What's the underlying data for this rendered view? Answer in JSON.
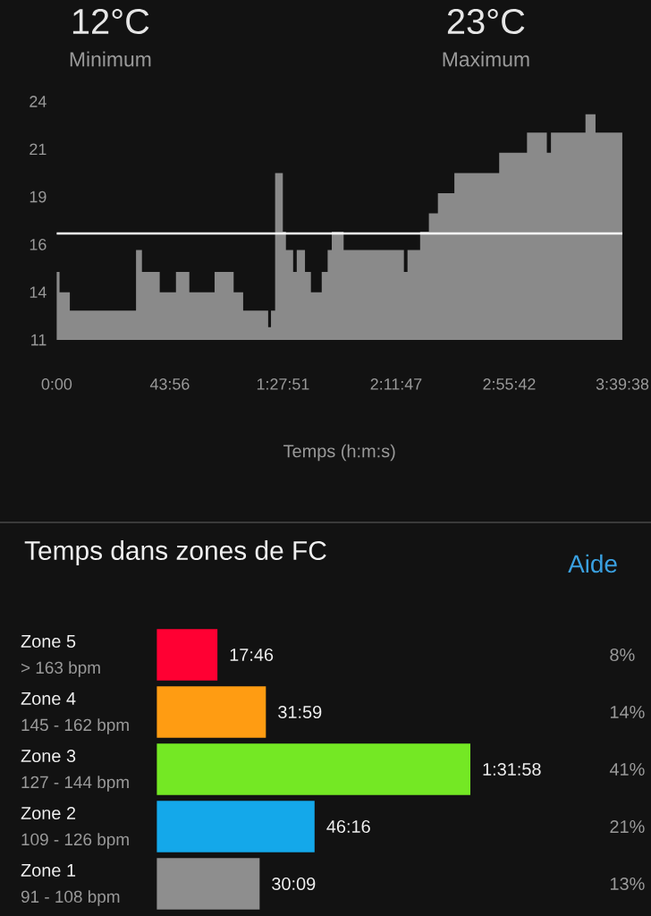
{
  "chart_data": [
    {
      "type": "area",
      "xlabel": "Temps (h:m:s)",
      "color": "#8a8a8a",
      "x": [
        0,
        1.1,
        5.1,
        30.8,
        33.1,
        40.0,
        46.3,
        51.5,
        61.3,
        68.7,
        72.4,
        82.1,
        83.2,
        84.8,
        87.8,
        89.0,
        91.8,
        93.2,
        96.4,
        98.7,
        102.9,
        105.2,
        106.8,
        111.4,
        134.8,
        136.2,
        141.1,
        144.5,
        148.0,
        154.4,
        171.8,
        182.6,
        190.3,
        191.9,
        205.3,
        209.2,
        219.6
      ],
      "values": [
        14.7,
        13.6,
        12.6,
        15.9,
        14.7,
        13.6,
        14.7,
        13.6,
        14.7,
        13.6,
        12.6,
        11.7,
        12.6,
        20.1,
        16.9,
        15.9,
        14.7,
        15.9,
        14.7,
        13.6,
        14.7,
        15.9,
        16.9,
        15.9,
        14.7,
        15.9,
        16.9,
        17.9,
        19.0,
        20.1,
        21.2,
        22.3,
        21.2,
        22.3,
        23.3,
        22.3,
        22.3
      ],
      "xlim": [
        0,
        219.633
      ],
      "ylim": [
        11,
        24
      ],
      "xticks": [
        {
          "value": 0,
          "label": "0:00"
        },
        {
          "value": 43.933,
          "label": "43:56"
        },
        {
          "value": 87.85,
          "label": "1:27:51"
        },
        {
          "value": 131.783,
          "label": "2:11:47"
        },
        {
          "value": 175.7,
          "label": "2:55:42"
        },
        {
          "value": 219.633,
          "label": "3:39:38"
        }
      ],
      "yticks": [
        11,
        {
          "value": 13.6,
          "label": "14"
        },
        {
          "value": 16.2,
          "label": "16"
        },
        {
          "value": 18.8,
          "label": "19"
        },
        {
          "value": 21.4,
          "label": "21"
        },
        24
      ],
      "ref_lines": [
        {
          "axis": "y",
          "value": 16.8,
          "color": "#ffffff"
        }
      ],
      "annotations": [
        "12°C",
        "Minimum",
        "23°C",
        "Maximum"
      ]
    },
    {
      "type": "bar",
      "orientation": "horizontal",
      "title": "Temps dans zones de FC",
      "tick_labels": "y",
      "categories": [
        "Zone 5",
        "Zone 4",
        "Zone 3",
        "Zone 2",
        "Zone 1"
      ],
      "values": [
        17.77,
        31.98,
        91.97,
        46.27,
        30.15
      ],
      "colors": [
        "#ff0033",
        "#ff9c12",
        "#74e824",
        "#14a8ea",
        "#8e8e8e"
      ],
      "value_labels": [
        "17:46",
        "31:59",
        "1:31:58",
        "46:16",
        "30:09"
      ],
      "annotations": [
        "Aide",
        "> 163 bpm",
        "145 - 162 bpm",
        "127 - 144 bpm",
        "109 - 126 bpm",
        "91 - 108 bpm",
        "8%",
        "14%",
        "41%",
        "21%",
        "13%"
      ]
    }
  ]
}
